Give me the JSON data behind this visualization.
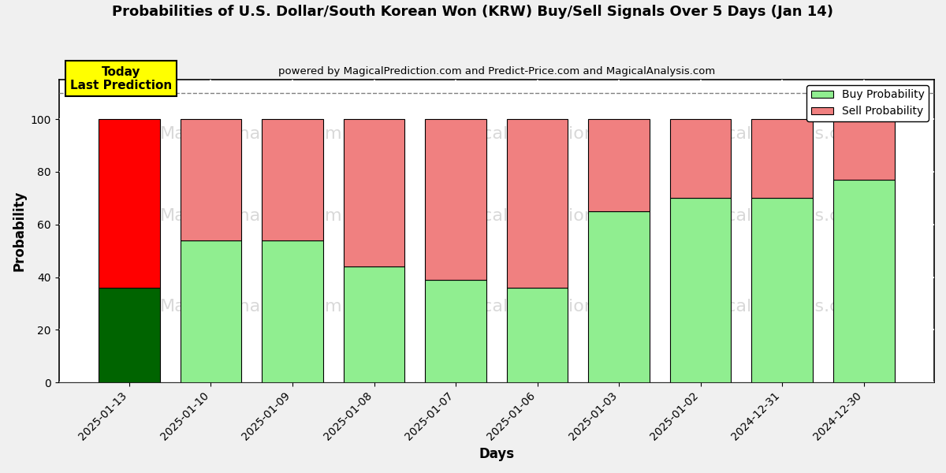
{
  "title": "Probabilities of U.S. Dollar/South Korean Won (KRW) Buy/Sell Signals Over 5 Days (Jan 14)",
  "subtitle": "powered by MagicalPrediction.com and Predict-Price.com and MagicalAnalysis.com",
  "xlabel": "Days",
  "ylabel": "Probability",
  "categories": [
    "2025-01-13",
    "2025-01-10",
    "2025-01-09",
    "2025-01-08",
    "2025-01-07",
    "2025-01-06",
    "2025-01-03",
    "2025-01-02",
    "2024-12-31",
    "2024-12-30"
  ],
  "buy_values": [
    36,
    54,
    54,
    44,
    39,
    36,
    65,
    70,
    70,
    77
  ],
  "sell_values": [
    64,
    46,
    46,
    56,
    61,
    64,
    35,
    30,
    30,
    23
  ],
  "buy_colors": [
    "#006400",
    "#90EE90",
    "#90EE90",
    "#90EE90",
    "#90EE90",
    "#90EE90",
    "#90EE90",
    "#90EE90",
    "#90EE90",
    "#90EE90"
  ],
  "sell_colors": [
    "#FF0000",
    "#F08080",
    "#F08080",
    "#F08080",
    "#F08080",
    "#F08080",
    "#F08080",
    "#F08080",
    "#F08080",
    "#F08080"
  ],
  "today_box_color": "#FFFF00",
  "today_label": "Today\nLast Prediction",
  "ylim": [
    0,
    115
  ],
  "yticks": [
    0,
    20,
    40,
    60,
    80,
    100
  ],
  "grid_color": "#FFFFFF",
  "bg_color": "#F0F0F0",
  "plot_bg_color": "#FFFFFF",
  "legend_buy_color": "#90EE90",
  "legend_sell_color": "#F08080",
  "dashed_line_y": 110,
  "bar_width": 0.75,
  "watermark_color": "#C8C8C8",
  "watermark_alpha": 0.6
}
